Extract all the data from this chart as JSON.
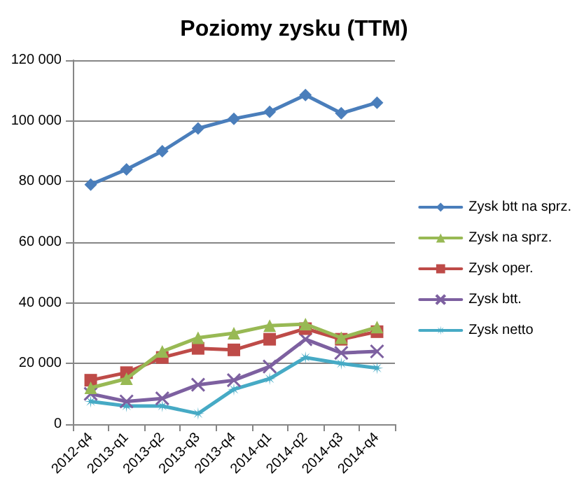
{
  "chart_data": {
    "type": "line",
    "title": "Poziomy zysku (TTM)",
    "categories": [
      "2012-q4",
      "2013-q1",
      "2013-q2",
      "2013-q3",
      "2013-q4",
      "2014-q1",
      "2014-q2",
      "2014-q3",
      "2014-q4"
    ],
    "series": [
      {
        "name": "Zysk btt na sprz.",
        "color": "#4a7ebb",
        "marker": "diamond",
        "values": [
          79000,
          84000,
          90000,
          97500,
          100700,
          103000,
          108500,
          102500,
          106000
        ]
      },
      {
        "name": "Zysk na sprz.",
        "color": "#98b954",
        "marker": "triangle",
        "values": [
          12000,
          15000,
          24000,
          28500,
          30000,
          32500,
          33000,
          28500,
          32000
        ]
      },
      {
        "name": "Zysk oper.",
        "color": "#be4b48",
        "marker": "square",
        "values": [
          14500,
          17000,
          22000,
          25000,
          24500,
          28000,
          31500,
          28000,
          30500
        ]
      },
      {
        "name": "Zysk btt.",
        "color": "#7d60a0",
        "marker": "cross",
        "values": [
          10000,
          7500,
          8500,
          13000,
          14500,
          19000,
          28000,
          23500,
          24000
        ]
      },
      {
        "name": "Zysk netto",
        "color": "#46aac5",
        "marker": "star",
        "values": [
          7500,
          6000,
          6000,
          3500,
          11500,
          15000,
          22000,
          20000,
          18500
        ]
      }
    ],
    "ylim": [
      0,
      120000
    ],
    "yticks": [
      {
        "value": 0,
        "label": "0"
      },
      {
        "value": 20000,
        "label": "20 000"
      },
      {
        "value": 40000,
        "label": "40 000"
      },
      {
        "value": 60000,
        "label": "60 000"
      },
      {
        "value": 80000,
        "label": "80 000"
      },
      {
        "value": 100000,
        "label": "100 000"
      },
      {
        "value": 120000,
        "label": "120 000"
      }
    ],
    "grid": "y",
    "legend": "right",
    "line_style": "solid"
  }
}
